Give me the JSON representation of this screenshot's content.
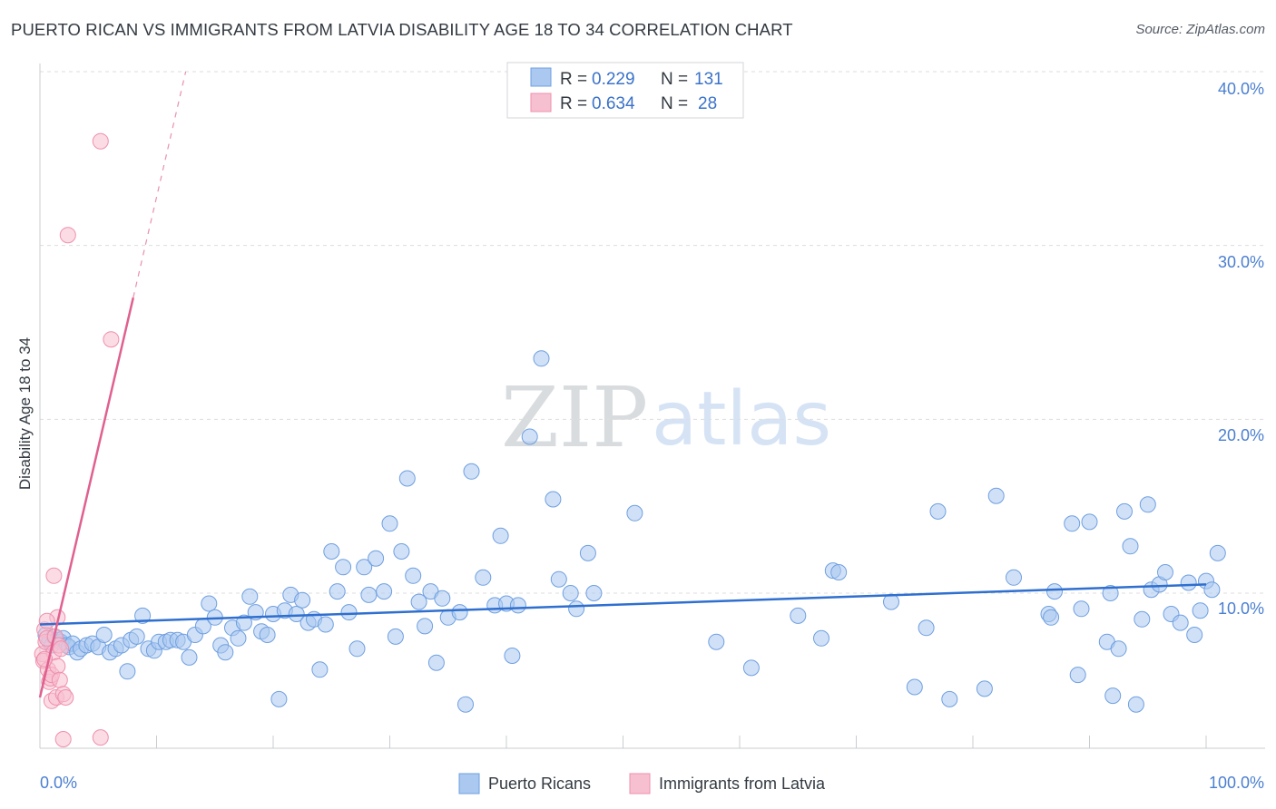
{
  "title": "PUERTO RICAN VS IMMIGRANTS FROM LATVIA DISABILITY AGE 18 TO 34 CORRELATION CHART",
  "source": "Source: ZipAtlas.com",
  "watermark": {
    "zip": "ZIP",
    "atlas": "atlas"
  },
  "colors": {
    "blue_fill": "#aac8f0",
    "blue_stroke": "#6f9fe0",
    "blue_line": "#2f6fcf",
    "pink_fill": "#f7c0d0",
    "pink_stroke": "#ef8fac",
    "pink_line": "#e0608f",
    "axis_text": "#4a7fd0",
    "grid": "#dddddd"
  },
  "stats": [
    {
      "r_label": "R =",
      "r_value": "0.229",
      "n_label": "N =",
      "n_value": "131",
      "series": "blue"
    },
    {
      "r_label": "R =",
      "r_value": "0.634",
      "n_label": "N =",
      "n_value": "28",
      "series": "pink"
    }
  ],
  "chart_data": {
    "type": "scatter",
    "title": "PUERTO RICAN VS IMMIGRANTS FROM LATVIA DISABILITY AGE 18 TO 34 CORRELATION CHART",
    "xlabel": "",
    "ylabel": "Disability Age 18 to 34",
    "xlim": [
      0,
      100
    ],
    "ylim": [
      0,
      42
    ],
    "x_tick_labels": [
      "0.0%",
      "100.0%"
    ],
    "y_ticks": [
      10,
      20,
      30,
      40
    ],
    "y_tick_labels": [
      "10.0%",
      "20.0%",
      "30.0%",
      "40.0%"
    ],
    "grid": true,
    "legend": [
      "Puerto Ricans",
      "Immigrants from Latvia"
    ],
    "series": [
      {
        "name": "Puerto Ricans",
        "color": "blue",
        "r": 0.229,
        "n": 131,
        "trend": {
          "x": [
            0,
            100
          ],
          "y": [
            8.2,
            10.5
          ]
        },
        "points": [
          [
            0.5,
            7.6
          ],
          [
            0.8,
            7.2
          ],
          [
            1.0,
            7.0
          ],
          [
            1.2,
            7.5
          ],
          [
            1.5,
            7.3
          ],
          [
            1.8,
            7.2
          ],
          [
            2.0,
            7.4
          ],
          [
            2.3,
            7.0
          ],
          [
            2.5,
            6.9
          ],
          [
            2.8,
            7.1
          ],
          [
            3.2,
            6.6
          ],
          [
            3.5,
            6.8
          ],
          [
            4.0,
            7.0
          ],
          [
            4.5,
            7.1
          ],
          [
            5.0,
            6.9
          ],
          [
            5.5,
            7.6
          ],
          [
            6.0,
            6.6
          ],
          [
            6.5,
            6.8
          ],
          [
            7.0,
            7.0
          ],
          [
            7.5,
            5.5
          ],
          [
            7.8,
            7.3
          ],
          [
            8.3,
            7.5
          ],
          [
            8.8,
            8.7
          ],
          [
            9.3,
            6.8
          ],
          [
            9.8,
            6.7
          ],
          [
            10.2,
            7.2
          ],
          [
            10.8,
            7.2
          ],
          [
            11.2,
            7.3
          ],
          [
            11.8,
            7.3
          ],
          [
            12.3,
            7.2
          ],
          [
            12.8,
            6.3
          ],
          [
            13.3,
            7.6
          ],
          [
            14.0,
            8.1
          ],
          [
            14.5,
            9.4
          ],
          [
            15.0,
            8.6
          ],
          [
            15.5,
            7.0
          ],
          [
            15.9,
            6.6
          ],
          [
            16.5,
            8.0
          ],
          [
            17.0,
            7.4
          ],
          [
            17.5,
            8.3
          ],
          [
            18.0,
            9.8
          ],
          [
            18.5,
            8.9
          ],
          [
            19.0,
            7.8
          ],
          [
            19.5,
            7.6
          ],
          [
            20.0,
            8.8
          ],
          [
            20.5,
            3.9
          ],
          [
            21.0,
            9.0
          ],
          [
            21.5,
            9.9
          ],
          [
            22.0,
            8.8
          ],
          [
            22.5,
            9.6
          ],
          [
            23.0,
            8.3
          ],
          [
            23.5,
            8.5
          ],
          [
            24.0,
            5.6
          ],
          [
            24.5,
            8.2
          ],
          [
            25.0,
            12.4
          ],
          [
            25.5,
            10.1
          ],
          [
            26.0,
            11.5
          ],
          [
            26.5,
            8.9
          ],
          [
            27.2,
            6.8
          ],
          [
            27.8,
            11.5
          ],
          [
            28.2,
            9.9
          ],
          [
            28.8,
            12.0
          ],
          [
            29.5,
            10.1
          ],
          [
            30.0,
            14.0
          ],
          [
            30.5,
            7.5
          ],
          [
            31.0,
            12.4
          ],
          [
            31.5,
            16.6
          ],
          [
            32.0,
            11.0
          ],
          [
            32.5,
            9.5
          ],
          [
            33.0,
            8.1
          ],
          [
            33.5,
            10.1
          ],
          [
            34.0,
            6.0
          ],
          [
            34.5,
            9.7
          ],
          [
            35.0,
            8.6
          ],
          [
            36.0,
            8.9
          ],
          [
            36.5,
            3.6
          ],
          [
            37.0,
            17.0
          ],
          [
            38.0,
            10.9
          ],
          [
            39.0,
            9.3
          ],
          [
            39.5,
            13.3
          ],
          [
            40.0,
            9.4
          ],
          [
            40.5,
            6.4
          ],
          [
            41.0,
            9.3
          ],
          [
            42.0,
            19.0
          ],
          [
            43.0,
            23.5
          ],
          [
            44.0,
            15.4
          ],
          [
            44.5,
            10.8
          ],
          [
            45.5,
            10.0
          ],
          [
            46.0,
            9.1
          ],
          [
            47.0,
            12.3
          ],
          [
            47.5,
            10.0
          ],
          [
            51.0,
            14.6
          ],
          [
            58.0,
            7.2
          ],
          [
            61.0,
            5.7
          ],
          [
            65.0,
            8.7
          ],
          [
            67.0,
            7.4
          ],
          [
            68.0,
            11.3
          ],
          [
            68.5,
            11.2
          ],
          [
            73.0,
            9.5
          ],
          [
            75.0,
            4.6
          ],
          [
            76.0,
            8.0
          ],
          [
            77.0,
            14.7
          ],
          [
            78.0,
            3.9
          ],
          [
            81.0,
            4.5
          ],
          [
            82.0,
            15.6
          ],
          [
            83.5,
            10.9
          ],
          [
            86.5,
            8.8
          ],
          [
            86.7,
            8.6
          ],
          [
            87.0,
            10.1
          ],
          [
            88.5,
            14.0
          ],
          [
            89.0,
            5.3
          ],
          [
            89.3,
            9.1
          ],
          [
            90.0,
            14.1
          ],
          [
            91.5,
            7.2
          ],
          [
            91.8,
            10.0
          ],
          [
            92.0,
            4.1
          ],
          [
            92.5,
            6.8
          ],
          [
            93.0,
            14.7
          ],
          [
            93.5,
            12.7
          ],
          [
            94.0,
            3.6
          ],
          [
            94.5,
            8.5
          ],
          [
            95.0,
            15.1
          ],
          [
            95.3,
            10.2
          ],
          [
            96.0,
            10.5
          ],
          [
            96.5,
            11.2
          ],
          [
            97.0,
            8.8
          ],
          [
            97.8,
            8.3
          ],
          [
            98.5,
            10.6
          ],
          [
            99.0,
            7.6
          ],
          [
            99.5,
            9.0
          ],
          [
            100.0,
            10.7
          ],
          [
            100.5,
            10.2
          ],
          [
            101.0,
            12.3
          ]
        ]
      },
      {
        "name": "Immigrants from Latvia",
        "color": "pink",
        "r": 0.634,
        "n": 28,
        "trend": {
          "x": [
            0,
            8
          ],
          "y": [
            4.0,
            27.0
          ],
          "dash_extension": {
            "x": [
              8,
              12.5
            ],
            "y": [
              27.0,
              40.0
            ]
          }
        },
        "points": [
          [
            0.2,
            6.5
          ],
          [
            0.3,
            6.1
          ],
          [
            0.4,
            7.9
          ],
          [
            0.5,
            7.2
          ],
          [
            0.6,
            7.4
          ],
          [
            0.7,
            5.6
          ],
          [
            0.8,
            4.9
          ],
          [
            0.9,
            5.1
          ],
          [
            1.0,
            5.3
          ],
          [
            1.0,
            3.8
          ],
          [
            1.2,
            6.6
          ],
          [
            1.3,
            7.5
          ],
          [
            1.4,
            4.0
          ],
          [
            1.5,
            5.8
          ],
          [
            1.6,
            7.0
          ],
          [
            1.7,
            5.0
          ],
          [
            1.8,
            6.8
          ],
          [
            1.2,
            11.0
          ],
          [
            1.5,
            8.6
          ],
          [
            0.6,
            8.4
          ],
          [
            0.4,
            6.2
          ],
          [
            2.0,
            4.2
          ],
          [
            2.2,
            4.0
          ],
          [
            5.2,
            36.0
          ],
          [
            2.4,
            30.6
          ],
          [
            6.1,
            24.6
          ],
          [
            2.0,
            1.6
          ],
          [
            5.2,
            1.7
          ]
        ]
      }
    ]
  }
}
